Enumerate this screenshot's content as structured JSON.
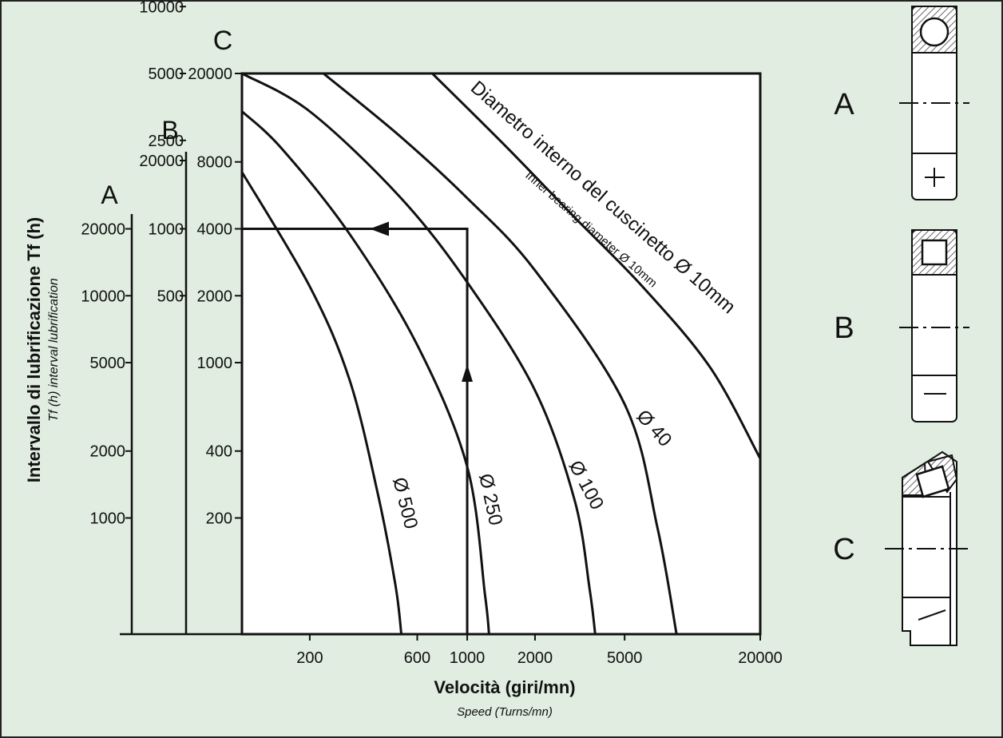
{
  "chart_data": {
    "type": "line",
    "title": "",
    "ylabel": "Intervallo di lubrificazione Tf (h)",
    "ylabel_sub": "Tf (h) interval lubrification",
    "xlabel": "Velocità (giri/mn)",
    "xlabel_sub": "Speed (Turns/mn)",
    "x_scale": "log",
    "x_range": [
      100,
      20000
    ],
    "x_ticks": [
      {
        "label": "200",
        "value": 200
      },
      {
        "label": "600",
        "value": 600
      },
      {
        "label": "1000",
        "value": 1000
      },
      {
        "label": "2000",
        "value": 2000
      },
      {
        "label": "5000",
        "value": 5000
      },
      {
        "label": "20000",
        "value": 20000
      }
    ],
    "y_axes": [
      {
        "name": "C",
        "range": [
          60,
          20000
        ],
        "ticks": [
          {
            "label": "20000",
            "value": 20000
          },
          {
            "label": "8000",
            "value": 8000
          },
          {
            "label": "4000",
            "value": 4000
          },
          {
            "label": "2000",
            "value": 2000
          },
          {
            "label": "1000",
            "value": 1000
          },
          {
            "label": "400",
            "value": 400
          },
          {
            "label": "200",
            "value": 200
          }
        ]
      },
      {
        "name": "B",
        "top_value": 20000,
        "ticks": [
          {
            "label": "20000",
            "value": 20000
          },
          {
            "label": "10000",
            "value": 10000
          },
          {
            "label": "5000",
            "value": 5000
          },
          {
            "label": "2500",
            "value": 2500
          },
          {
            "label": "1000",
            "value": 1000
          },
          {
            "label": "500",
            "value": 500
          }
        ]
      },
      {
        "name": "A",
        "ticks": [
          {
            "label": "20000",
            "value": 20000
          },
          {
            "label": "10000",
            "value": 10000
          },
          {
            "label": "5000",
            "value": 5000
          },
          {
            "label": "2000",
            "value": 2000
          },
          {
            "label": "1000",
            "value": 1000
          }
        ]
      }
    ],
    "series": [
      {
        "name": "Ø 500",
        "x": [
          100,
          200,
          300,
          400,
          480,
          510
        ],
        "y": [
          7200,
          2200,
          840,
          260,
          100,
          60
        ]
      },
      {
        "name": "Ø 250",
        "x": [
          100,
          150,
          300,
          600,
          1000,
          1200,
          1250
        ],
        "y": [
          13500,
          9200,
          3800,
          1200,
          340,
          90,
          60
        ]
      },
      {
        "name": "Ø 100",
        "x": [
          100,
          200,
          500,
          1000,
          2000,
          3000,
          3500,
          3700
        ],
        "y": [
          20000,
          13500,
          5600,
          2300,
          750,
          240,
          95,
          60
        ]
      },
      {
        "name": "Ø 40",
        "x": [
          230,
          500,
          1000,
          2000,
          5000,
          7000,
          8500
        ],
        "y": [
          20000,
          10500,
          5500,
          2600,
          650,
          180,
          60
        ]
      },
      {
        "name": "Diametro interno del cuscinetto Ø 10mm",
        "x": [
          700,
          1500,
          3000,
          6000,
          12000,
          20000
        ],
        "y": [
          20000,
          9300,
          4500,
          2200,
          950,
          370
        ]
      }
    ],
    "series_labels": [
      "Ø 500",
      "Ø 250",
      "Ø 100",
      "Ø 40"
    ],
    "curve_note_main": "Diametro interno del cuscinetto Ø 10mm",
    "curve_note_sub": "Inner bearing diameter Ø 10mm",
    "example_path": {
      "x": 1000,
      "y": 4000
    },
    "grid": false,
    "legend": "none"
  },
  "bearing_types": [
    {
      "name": "A",
      "symbol": "+"
    },
    {
      "name": "B",
      "symbol": "—"
    },
    {
      "name": "C",
      "symbol": ""
    }
  ]
}
